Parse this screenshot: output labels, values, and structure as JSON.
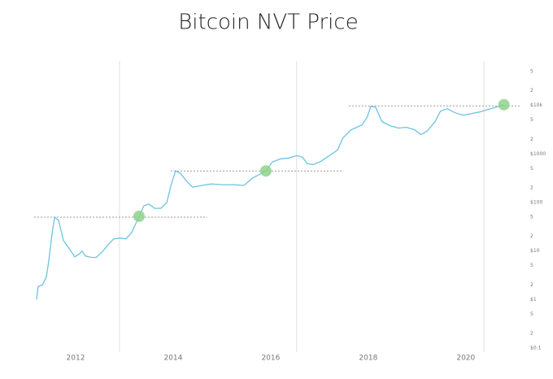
{
  "chart_data": {
    "type": "line",
    "title": "Bitcoin NVT Price",
    "x": [
      2011.2,
      2011.23,
      2011.32,
      2011.4,
      2011.45,
      2011.52,
      2011.57,
      2011.65,
      2011.75,
      2011.87,
      2011.98,
      2012.07,
      2012.13,
      2012.2,
      2012.32,
      2012.42,
      2012.53,
      2012.67,
      2012.78,
      2012.9,
      2013.03,
      2013.15,
      2013.3,
      2013.4,
      2013.5,
      2013.62,
      2013.75,
      2013.87,
      2013.95,
      2014.05,
      2014.15,
      2014.28,
      2014.4,
      2014.58,
      2014.78,
      2015.03,
      2015.28,
      2015.45,
      2015.62,
      2015.78,
      2015.9,
      2016.03,
      2016.2,
      2016.37,
      2016.53,
      2016.65,
      2016.75,
      2016.87,
      2017.03,
      2017.2,
      2017.37,
      2017.48,
      2017.65,
      2017.87,
      2017.98,
      2018.05,
      2018.15,
      2018.28,
      2018.45,
      2018.62,
      2018.78,
      2018.95,
      2019.08,
      2019.2,
      2019.37,
      2019.48,
      2019.62,
      2019.78,
      2019.95,
      2020.12,
      2020.28,
      2020.45,
      2020.62,
      2020.78
    ],
    "series": [
      {
        "color": "#6cc3e2",
        "values": [
          1.0,
          1.85,
          2.0,
          2.93,
          6.3,
          24.2,
          50,
          43,
          16.5,
          11.2,
          7.6,
          8.6,
          10,
          7.9,
          7.4,
          7.4,
          9.3,
          13.6,
          17.8,
          18.5,
          17.8,
          24.2,
          52,
          86,
          93,
          76,
          76,
          100,
          215,
          447,
          398,
          271,
          207,
          224,
          242,
          233,
          233,
          224,
          316,
          383,
          447,
          681,
          794,
          826,
          926,
          858,
          631,
          607,
          708,
          926,
          1212,
          2154,
          3162,
          3981,
          5843,
          9620,
          9268,
          4642,
          3831,
          3415,
          3548,
          3162,
          2512,
          2929,
          4642,
          7640,
          8577,
          7079,
          6310,
          6813,
          7356,
          8254,
          9268,
          10390
        ]
      }
    ],
    "xlim": [
      2010.95,
      2021.12
    ],
    "xticks": [
      2012,
      2014,
      2016,
      2018,
      2020
    ],
    "log_scale_y": true,
    "ylim": [
      0.1,
      50000
    ],
    "yticks": [
      {
        "value": 0.1,
        "label": "$0.1"
      },
      {
        "value": 0.2,
        "label": "2"
      },
      {
        "value": 0.5,
        "label": "5"
      },
      {
        "value": 1,
        "label": "$1"
      },
      2,
      5,
      {
        "value": 10,
        "label": "$10"
      },
      {
        "value": 20,
        "label": "2"
      },
      {
        "value": 50,
        "label": "5"
      },
      {
        "value": 100,
        "label": "$100"
      },
      {
        "value": 200,
        "label": "2"
      },
      {
        "value": 500,
        "label": "5"
      },
      {
        "value": 1000,
        "label": "$1000"
      },
      {
        "value": 2000,
        "label": "2"
      },
      {
        "value": 5000,
        "label": "5"
      },
      {
        "value": 10000,
        "label": "$10k"
      },
      {
        "value": 20000,
        "label": "2"
      },
      {
        "value": 50000,
        "label": "5"
      }
    ],
    "vlines": [
      2012.9,
      2016.53,
      2020.37
    ],
    "reference_lines": [
      {
        "x": [
          2011.15,
          2014.7
        ],
        "y": 50
      },
      {
        "x": [
          2013.95,
          2017.48
        ],
        "y": 447
      },
      {
        "x": [
          2017.6,
          2021.12
        ],
        "y": 9800
      }
    ],
    "markers": {
      "color": "#8ed28a",
      "x": [
        2013.3,
        2015.9,
        2020.78
      ],
      "y": [
        52,
        447,
        10390
      ]
    }
  }
}
